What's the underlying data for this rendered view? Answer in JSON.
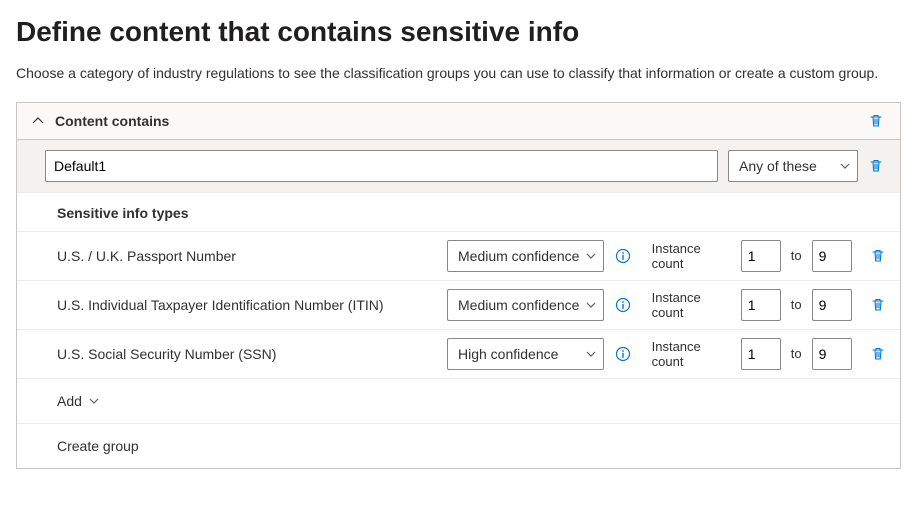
{
  "pageTitle": "Define content that contains sensitive info",
  "description": "Choose a category of industry regulations to see the classification groups you can use to classify that information or create a custom group.",
  "panelTitle": "Content contains",
  "groupName": "Default1",
  "matchMode": "Any of these",
  "sectionTitle": "Sensitive info types",
  "instanceLabel": "Instance count",
  "toLabel": "to",
  "addLabel": "Add",
  "createGroupLabel": "Create group",
  "rows": [
    {
      "name": "U.S. / U.K. Passport Number",
      "confidence": "Medium confidence",
      "from": "1",
      "to": "9"
    },
    {
      "name": "U.S. Individual Taxpayer Identification Number (ITIN)",
      "confidence": "Medium confidence",
      "from": "1",
      "to": "9"
    },
    {
      "name": "U.S. Social Security Number (SSN)",
      "confidence": "High confidence",
      "from": "1",
      "to": "9"
    }
  ]
}
